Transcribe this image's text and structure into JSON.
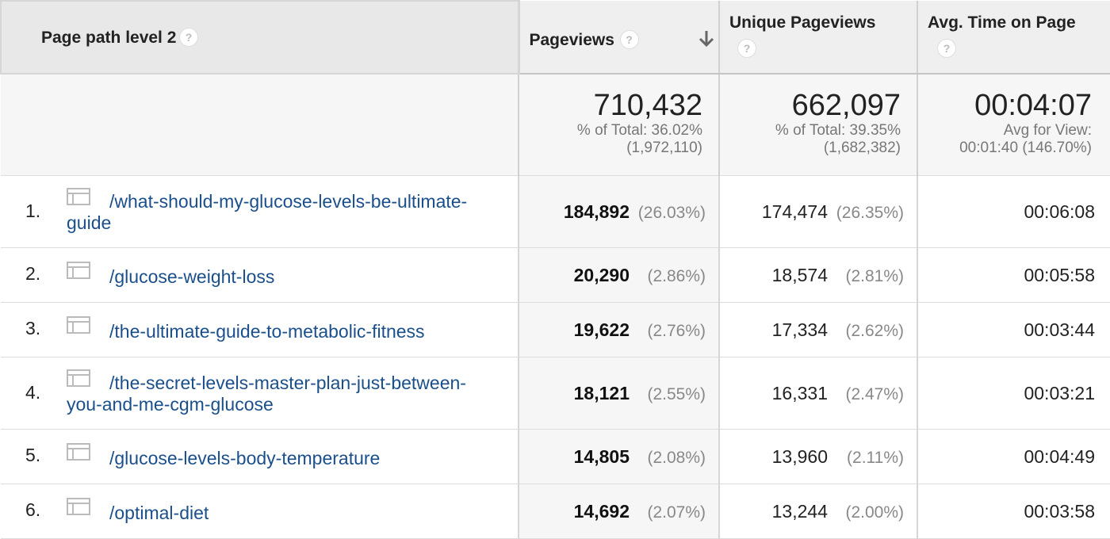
{
  "headers": {
    "path": "Page path level 2",
    "pageviews": "Pageviews",
    "unique": "Unique Pageviews",
    "avg_time": "Avg. Time on Page",
    "help_icon": "?"
  },
  "summary": {
    "pageviews": {
      "value": "710,432",
      "line1": "% of Total: 36.02%",
      "line2": "(1,972,110)"
    },
    "unique": {
      "value": "662,097",
      "line1": "% of Total: 39.35%",
      "line2": "(1,682,382)"
    },
    "avg_time": {
      "value": "00:04:07",
      "line1": "Avg for View:",
      "line2": "00:01:40 (146.70%)"
    }
  },
  "rows": [
    {
      "index": "1.",
      "path_a": "/what-should-my-glucose-levels-be-ultimate-",
      "path_b": "guide",
      "pageviews": "184,892",
      "pv_pct": "(26.03%)",
      "unique": "174,474",
      "up_pct": "(26.35%)",
      "avg_time": "00:06:08"
    },
    {
      "index": "2.",
      "path_a": "/glucose-weight-loss",
      "path_b": "",
      "pageviews": "20,290",
      "pv_pct": "(2.86%)",
      "unique": "18,574",
      "up_pct": "(2.81%)",
      "avg_time": "00:05:58"
    },
    {
      "index": "3.",
      "path_a": "/the-ultimate-guide-to-metabolic-fitness",
      "path_b": "",
      "pageviews": "19,622",
      "pv_pct": "(2.76%)",
      "unique": "17,334",
      "up_pct": "(2.62%)",
      "avg_time": "00:03:44"
    },
    {
      "index": "4.",
      "path_a": "/the-secret-levels-master-plan-just-between-",
      "path_b": "you-and-me-cgm-glucose",
      "pageviews": "18,121",
      "pv_pct": "(2.55%)",
      "unique": "16,331",
      "up_pct": "(2.47%)",
      "avg_time": "00:03:21"
    },
    {
      "index": "5.",
      "path_a": "/glucose-levels-body-temperature",
      "path_b": "",
      "pageviews": "14,805",
      "pv_pct": "(2.08%)",
      "unique": "13,960",
      "up_pct": "(2.11%)",
      "avg_time": "00:04:49"
    },
    {
      "index": "6.",
      "path_a": "/optimal-diet",
      "path_b": "",
      "pageviews": "14,692",
      "pv_pct": "(2.07%)",
      "unique": "13,244",
      "up_pct": "(2.00%)",
      "avg_time": "00:03:58"
    }
  ]
}
